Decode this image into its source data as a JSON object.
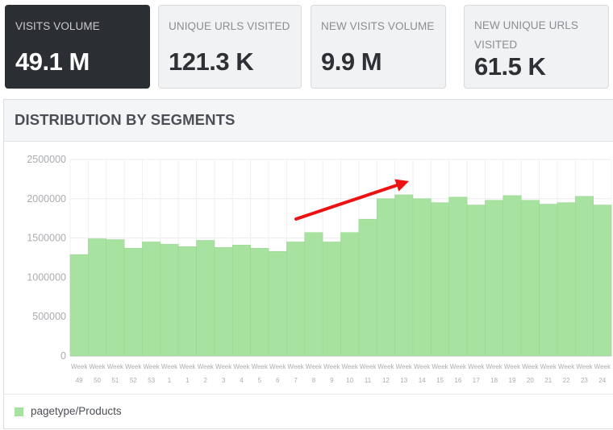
{
  "kpis": [
    {
      "label": "VISITS VOLUME",
      "value": "49.1 M"
    },
    {
      "label": "UNIQUE URLS VISITED",
      "value": "121.3 K"
    },
    {
      "label": "NEW VISITS VOLUME",
      "value": "9.9 M"
    },
    {
      "label": "NEW UNIQUE URLS VISITED",
      "value": "61.5 K"
    }
  ],
  "panel": {
    "title": "DISTRIBUTION BY SEGMENTS"
  },
  "colors": {
    "bar": "#a8e2a0",
    "bar_edge": "#98d790",
    "active_card": "#2b2e33",
    "arrow": "#ee1111"
  },
  "chart_data": {
    "type": "bar",
    "categories": [
      "Week 49",
      "Week 50",
      "Week 51",
      "Week 52",
      "Week 53",
      "Week 1",
      "Week 1",
      "Week 2",
      "Week 3",
      "Week 4",
      "Week 5",
      "Week 6",
      "Week 7",
      "Week 8",
      "Week 9",
      "Week 10",
      "Week 11",
      "Week 12",
      "Week 13",
      "Week 14",
      "Week 15",
      "Week 16",
      "Week 17",
      "Week 18",
      "Week 19",
      "Week 20",
      "Week 21",
      "Week 22",
      "Week 23",
      "Week 24"
    ],
    "tick_top": "Week",
    "tick_bottom": [
      "49",
      "50",
      "51",
      "52",
      "53",
      "1",
      "1",
      "2",
      "3",
      "4",
      "5",
      "6",
      "7",
      "8",
      "9",
      "10",
      "11",
      "12",
      "13",
      "14",
      "15",
      "16",
      "17",
      "18",
      "19",
      "20",
      "21",
      "22",
      "23",
      "24"
    ],
    "series": [
      {
        "name": "pagetype/Products",
        "values": [
          1290000,
          1490000,
          1480000,
          1370000,
          1450000,
          1420000,
          1390000,
          1470000,
          1380000,
          1410000,
          1370000,
          1330000,
          1450000,
          1570000,
          1450000,
          1570000,
          1740000,
          2000000,
          2050000,
          2000000,
          1950000,
          2020000,
          1920000,
          1980000,
          2040000,
          1980000,
          1930000,
          1950000,
          2030000,
          1920000
        ]
      }
    ],
    "yticks": [
      0,
      500000,
      1000000,
      1500000,
      2000000,
      2500000
    ],
    "ylim": [
      0,
      2500000
    ],
    "grid": true,
    "legend": "bottom-left",
    "annotation": "red arrow pointing up-right"
  }
}
